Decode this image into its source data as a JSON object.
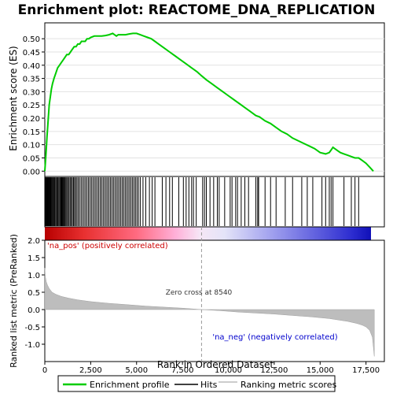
{
  "chart_data": {
    "type": "line",
    "title": "Enrichment plot: REACTOME_DNA_REPLICATION",
    "xlabel": "Rank in Ordered Dataset",
    "es_panel": {
      "ylabel": "Enrichment score (ES)",
      "ylim": [
        -0.02,
        0.56
      ],
      "yticks": [
        0.0,
        0.05,
        0.1,
        0.15,
        0.2,
        0.25,
        0.3,
        0.35,
        0.4,
        0.45,
        0.5
      ],
      "ytick_labels": [
        "0.00",
        "0.05",
        "0.10",
        "0.15",
        "0.20",
        "0.25",
        "0.30",
        "0.35",
        "0.40",
        "0.45",
        "0.50"
      ],
      "series": [
        {
          "name": "Enrichment profile",
          "color": "#00cc00",
          "x": [
            0,
            60,
            120,
            180,
            240,
            300,
            360,
            420,
            500,
            600,
            700,
            800,
            900,
            1000,
            1100,
            1200,
            1300,
            1400,
            1500,
            1600,
            1700,
            1800,
            1900,
            2000,
            2100,
            2200,
            2300,
            2400,
            2500,
            2700,
            2900,
            3100,
            3300,
            3500,
            3700,
            3800,
            3900,
            4000,
            4200,
            4400,
            4600,
            4800,
            5000,
            5200,
            5400,
            5600,
            5800,
            6000,
            6200,
            6500,
            6800,
            7100,
            7400,
            7700,
            8000,
            8300,
            8540,
            8800,
            9100,
            9400,
            9700,
            10000,
            10300,
            10600,
            10900,
            11200,
            11500,
            11700,
            12000,
            12300,
            12600,
            12900,
            13200,
            13500,
            13800,
            14100,
            14400,
            14700,
            15000,
            15300,
            15500,
            15600,
            15700,
            15900,
            16100,
            16300,
            16500,
            16700,
            16900,
            17100,
            17300,
            17500,
            17700,
            17900
          ],
          "values": [
            0.0,
            0.06,
            0.13,
            0.19,
            0.25,
            0.28,
            0.31,
            0.33,
            0.35,
            0.37,
            0.39,
            0.4,
            0.41,
            0.42,
            0.43,
            0.44,
            0.44,
            0.45,
            0.46,
            0.47,
            0.47,
            0.48,
            0.48,
            0.49,
            0.49,
            0.49,
            0.5,
            0.5,
            0.505,
            0.51,
            0.51,
            0.51,
            0.512,
            0.515,
            0.52,
            0.515,
            0.51,
            0.515,
            0.515,
            0.515,
            0.518,
            0.52,
            0.52,
            0.515,
            0.51,
            0.505,
            0.5,
            0.49,
            0.48,
            0.465,
            0.45,
            0.435,
            0.42,
            0.405,
            0.39,
            0.375,
            0.36,
            0.345,
            0.33,
            0.315,
            0.3,
            0.285,
            0.27,
            0.255,
            0.24,
            0.225,
            0.21,
            0.205,
            0.19,
            0.18,
            0.165,
            0.15,
            0.14,
            0.125,
            0.115,
            0.105,
            0.095,
            0.085,
            0.07,
            0.065,
            0.07,
            0.08,
            0.09,
            0.08,
            0.07,
            0.065,
            0.06,
            0.055,
            0.05,
            0.05,
            0.04,
            0.03,
            0.015,
            0.0
          ]
        }
      ]
    },
    "hits_panel": {
      "label": "Hits",
      "hit_ranks": [
        15,
        40,
        70,
        95,
        120,
        150,
        180,
        210,
        240,
        270,
        300,
        330,
        360,
        400,
        440,
        480,
        520,
        560,
        610,
        660,
        710,
        760,
        810,
        860,
        900,
        940,
        980,
        1020,
        1060,
        1100,
        1150,
        1200,
        1260,
        1320,
        1380,
        1440,
        1500,
        1560,
        1620,
        1680,
        1750,
        1820,
        1900,
        1980,
        2060,
        2140,
        2220,
        2300,
        2380,
        2460,
        2540,
        2620,
        2700,
        2780,
        2860,
        2940,
        3020,
        3100,
        3180,
        3260,
        3340,
        3420,
        3500,
        3580,
        3660,
        3740,
        3820,
        3900,
        3980,
        4060,
        4140,
        4220,
        4300,
        4380,
        4460,
        4540,
        4620,
        4700,
        4780,
        4860,
        4940,
        5020,
        5100,
        5200,
        5350,
        5500,
        5700,
        5850,
        6000,
        6400,
        6600,
        6800,
        6950,
        7300,
        7550,
        7700,
        7850,
        8000,
        8100,
        8250,
        8600,
        8700,
        8800,
        9000,
        9200,
        9400,
        9500,
        9800,
        10100,
        10200,
        10400,
        10500,
        10700,
        10900,
        11100,
        11500,
        11600,
        11650,
        12000,
        12300,
        12600,
        13100,
        13500,
        14000,
        14300,
        14600,
        15100,
        15300,
        15500,
        15600,
        15700,
        16300,
        16700,
        16900,
        17100
      ]
    },
    "rank_panel": {
      "ylabel": "Ranked list metric (PreRanked)",
      "ylim": [
        -1.5,
        2.0
      ],
      "yticks": [
        -1.0,
        -0.5,
        0.0,
        0.5,
        1.0,
        1.5,
        2.0
      ],
      "ytick_labels": [
        "-1.0",
        "-0.5",
        "0.0",
        "0.5",
        "1.0",
        "1.5",
        "2.0"
      ],
      "profile_x": [
        0,
        30,
        80,
        150,
        250,
        400,
        600,
        900,
        1300,
        1800,
        2500,
        3500,
        4500,
        5500,
        6500,
        7500,
        8540,
        9500,
        10500,
        11500,
        12500,
        13500,
        14500,
        15500,
        16000,
        16500,
        17000,
        17300,
        17500,
        17700,
        17850,
        17950
      ],
      "profile_values": [
        1.2,
        0.95,
        0.8,
        0.7,
        0.6,
        0.5,
        0.44,
        0.38,
        0.33,
        0.28,
        0.23,
        0.18,
        0.14,
        0.1,
        0.07,
        0.04,
        0.0,
        -0.03,
        -0.07,
        -0.1,
        -0.13,
        -0.17,
        -0.21,
        -0.26,
        -0.3,
        -0.34,
        -0.4,
        -0.45,
        -0.5,
        -0.6,
        -0.8,
        -1.35
      ]
    },
    "xaxis": {
      "xlim": [
        0,
        18500
      ],
      "ticks": [
        0,
        2500,
        5000,
        7500,
        10000,
        12500,
        15000,
        17500
      ],
      "tick_labels": [
        "0",
        "2,500",
        "5,000",
        "7,500",
        "10,000",
        "12,500",
        "15,000",
        "17,500"
      ]
    },
    "annotations": {
      "pos_label": "'na_pos' (positively correlated)",
      "neg_label": "'na_neg' (negatively correlated)",
      "zero_cross_label": "Zero cross at 8540",
      "zero_cross_rank": 8540
    },
    "legend": {
      "placement": "bottom",
      "entries": [
        {
          "label": "Enrichment profile",
          "color": "#00cc00"
        },
        {
          "label": "Hits",
          "color": "#000000"
        },
        {
          "label": "Ranking metric scores",
          "color": "#bbbbbb"
        }
      ]
    },
    "total_ranks": 17950
  }
}
